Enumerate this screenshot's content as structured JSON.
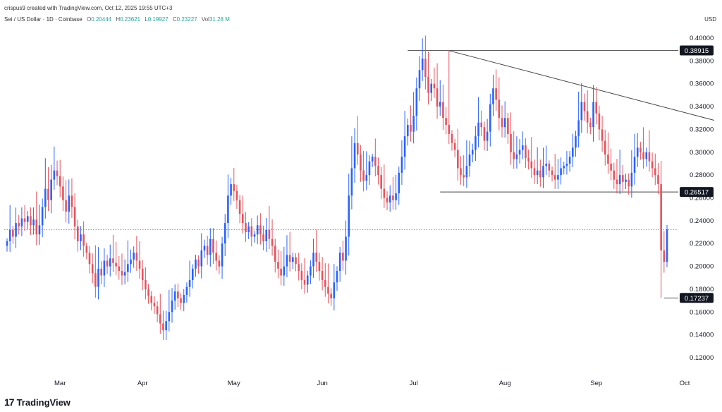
{
  "header": {
    "created_by": "crispus9 created with TradingView.com, Oct 12, 2025 19:55 UTC+3",
    "symbol": "Sei / US Dollar · 1D · Coinbase",
    "ohlc": [
      {
        "k": "O",
        "v": "0.20444"
      },
      {
        "k": "H",
        "v": "0.23621"
      },
      {
        "k": "L",
        "v": "0.19927"
      },
      {
        "k": "C",
        "v": "0.23227"
      },
      {
        "k": "Vol",
        "v": "31.28 M"
      }
    ],
    "currency": "USD"
  },
  "brand": {
    "logo": "17",
    "name": "TradingView"
  },
  "colors": {
    "up": "#2962ff",
    "down": "#e5535d",
    "line": "#444444",
    "grid_price": "#26a69a",
    "tag_bg": "#131722"
  },
  "chart_data": {
    "type": "candlestick",
    "y_axis": {
      "min": 0.11,
      "max": 0.405,
      "ticks": [
        "0.40000",
        "0.38000",
        "0.36000",
        "0.34000",
        "0.32000",
        "0.30000",
        "0.28000",
        "0.26000",
        "0.24000",
        "0.22000",
        "0.20000",
        "0.18000",
        "0.16000",
        "0.14000",
        "0.12000"
      ]
    },
    "x_axis": {
      "labels": [
        "Mar",
        "Apr",
        "May",
        "Jun",
        "Jul",
        "Aug",
        "Sep",
        "Oct"
      ],
      "label_day_index": [
        18,
        46,
        77,
        107,
        138,
        169,
        200,
        230
      ]
    },
    "grid": false,
    "current_price": 0.23227,
    "levels": [
      {
        "label": "0.38915",
        "value": 0.38915,
        "from_day": 136
      },
      {
        "label": "0.26517",
        "value": 0.26517,
        "from_day": 147
      },
      {
        "label": "0.17237",
        "value": 0.17237,
        "from_day": 223
      }
    ],
    "trendline": {
      "from": {
        "day": 150,
        "value": 0.389
      },
      "to": {
        "day": 240,
        "value": 0.328
      }
    },
    "closes": [
      0.222,
      0.232,
      0.226,
      0.238,
      0.235,
      0.242,
      0.239,
      0.244,
      0.236,
      0.241,
      0.228,
      0.236,
      0.252,
      0.268,
      0.258,
      0.276,
      0.284,
      0.279,
      0.27,
      0.258,
      0.248,
      0.262,
      0.252,
      0.235,
      0.222,
      0.228,
      0.218,
      0.212,
      0.202,
      0.194,
      0.182,
      0.198,
      0.192,
      0.205,
      0.2,
      0.207,
      0.203,
      0.2,
      0.196,
      0.192,
      0.195,
      0.202,
      0.206,
      0.212,
      0.205,
      0.198,
      0.188,
      0.18,
      0.174,
      0.168,
      0.165,
      0.158,
      0.15,
      0.144,
      0.152,
      0.16,
      0.17,
      0.178,
      0.172,
      0.168,
      0.175,
      0.182,
      0.188,
      0.198,
      0.206,
      0.2,
      0.214,
      0.218,
      0.21,
      0.224,
      0.212,
      0.205,
      0.2,
      0.22,
      0.238,
      0.262,
      0.272,
      0.266,
      0.258,
      0.246,
      0.238,
      0.23,
      0.235,
      0.226,
      0.228,
      0.236,
      0.228,
      0.222,
      0.232,
      0.224,
      0.218,
      0.204,
      0.198,
      0.192,
      0.2,
      0.21,
      0.204,
      0.208,
      0.202,
      0.196,
      0.188,
      0.184,
      0.192,
      0.2,
      0.212,
      0.204,
      0.196,
      0.188,
      0.182,
      0.176,
      0.172,
      0.186,
      0.196,
      0.212,
      0.205,
      0.226,
      0.262,
      0.286,
      0.308,
      0.298,
      0.284,
      0.275,
      0.28,
      0.292,
      0.296,
      0.288,
      0.28,
      0.268,
      0.26,
      0.256,
      0.262,
      0.258,
      0.264,
      0.282,
      0.296,
      0.314,
      0.324,
      0.318,
      0.332,
      0.356,
      0.372,
      0.382,
      0.366,
      0.352,
      0.36,
      0.356,
      0.34,
      0.344,
      0.33,
      0.324,
      0.316,
      0.308,
      0.302,
      0.286,
      0.28,
      0.278,
      0.288,
      0.298,
      0.302,
      0.314,
      0.326,
      0.322,
      0.31,
      0.318,
      0.342,
      0.356,
      0.346,
      0.33,
      0.322,
      0.33,
      0.316,
      0.3,
      0.294,
      0.298,
      0.302,
      0.306,
      0.295,
      0.292,
      0.286,
      0.28,
      0.284,
      0.278,
      0.288,
      0.29,
      0.284,
      0.28,
      0.276,
      0.28,
      0.286,
      0.288,
      0.29,
      0.296,
      0.304,
      0.314,
      0.328,
      0.344,
      0.336,
      0.326,
      0.322,
      0.344,
      0.334,
      0.32,
      0.31,
      0.298,
      0.29,
      0.284,
      0.276,
      0.272,
      0.28,
      0.274,
      0.276,
      0.27,
      0.282,
      0.296,
      0.304,
      0.3,
      0.294,
      0.3,
      0.292,
      0.286,
      0.28,
      0.272,
      0.214,
      0.204,
      0.23227
    ],
    "opens": null,
    "ranges": null
  }
}
